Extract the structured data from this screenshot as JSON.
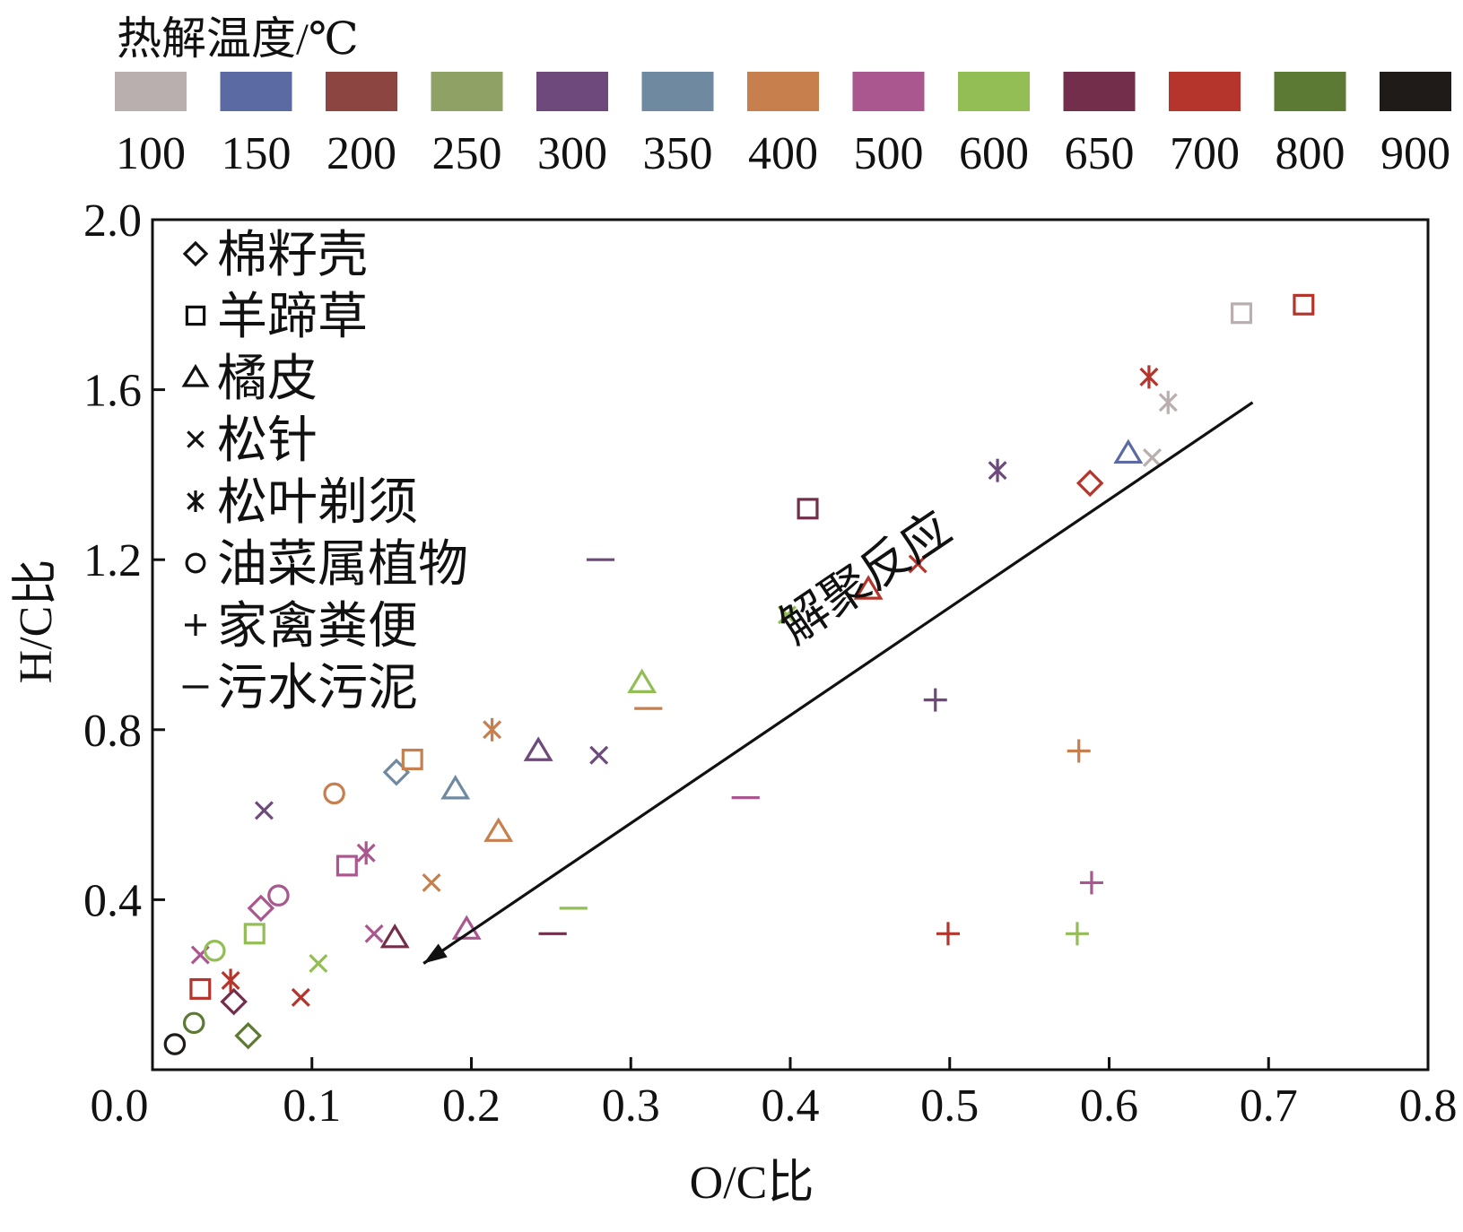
{
  "chart_data": {
    "type": "scatter",
    "xlabel": "O/C比",
    "ylabel": "H/C比",
    "xlim": [
      0.0,
      0.8
    ],
    "ylim": [
      0.0,
      2.0
    ],
    "xticks": [
      "0.0",
      "0.1",
      "0.2",
      "0.3",
      "0.4",
      "0.5",
      "0.6",
      "0.7",
      "0.8"
    ],
    "yticks": [
      "0.4",
      "0.8",
      "1.2",
      "1.6",
      "2.0"
    ],
    "grid": false,
    "color_legend": {
      "title": "热解温度/℃",
      "items": [
        {
          "label": "100",
          "color": "#b8afae"
        },
        {
          "label": "150",
          "color": "#5c6aa3"
        },
        {
          "label": "200",
          "color": "#8c4540"
        },
        {
          "label": "250",
          "color": "#8fa165"
        },
        {
          "label": "300",
          "color": "#6d4a7b"
        },
        {
          "label": "350",
          "color": "#6f8aa0"
        },
        {
          "label": "400",
          "color": "#c67f4d"
        },
        {
          "label": "500",
          "color": "#a9578e"
        },
        {
          "label": "600",
          "color": "#93bd55"
        },
        {
          "label": "650",
          "color": "#722e4b"
        },
        {
          "label": "700",
          "color": "#b5342b"
        },
        {
          "label": "800",
          "color": "#5c7a33"
        },
        {
          "label": "900",
          "color": "#1e1b19"
        }
      ]
    },
    "marker_legend": {
      "placement": "top-left",
      "items": [
        {
          "label": "棉籽壳",
          "marker": "diamond"
        },
        {
          "label": "羊蹄草",
          "marker": "square"
        },
        {
          "label": "橘皮",
          "marker": "triangle"
        },
        {
          "label": "松针",
          "marker": "x"
        },
        {
          "label": "松叶剃须",
          "marker": "star"
        },
        {
          "label": "油菜属植物",
          "marker": "circle"
        },
        {
          "label": "家禽粪便",
          "marker": "plus"
        },
        {
          "label": "污水污泥",
          "marker": "minus"
        }
      ]
    },
    "annotation": {
      "text": "解聚反应",
      "from": [
        0.69,
        1.57
      ],
      "to": [
        0.17,
        0.25
      ]
    },
    "series": [
      {
        "name": "棉籽壳",
        "marker": "diamond",
        "points": [
          {
            "x": 0.153,
            "y": 0.7,
            "t": "350"
          },
          {
            "x": 0.068,
            "y": 0.38,
            "t": "500"
          },
          {
            "x": 0.051,
            "y": 0.16,
            "t": "650"
          },
          {
            "x": 0.06,
            "y": 0.08,
            "t": "800"
          },
          {
            "x": 0.588,
            "y": 1.38,
            "t": "700"
          }
        ]
      },
      {
        "name": "羊蹄草",
        "marker": "square",
        "points": [
          {
            "x": 0.683,
            "y": 1.78,
            "t": "100"
          },
          {
            "x": 0.722,
            "y": 1.8,
            "t": "700"
          },
          {
            "x": 0.411,
            "y": 1.32,
            "t": "650"
          },
          {
            "x": 0.163,
            "y": 0.73,
            "t": "400"
          },
          {
            "x": 0.122,
            "y": 0.48,
            "t": "500"
          },
          {
            "x": 0.064,
            "y": 0.32,
            "t": "600"
          },
          {
            "x": 0.03,
            "y": 0.19,
            "t": "700"
          }
        ]
      },
      {
        "name": "橘皮",
        "marker": "triangle",
        "points": [
          {
            "x": 0.612,
            "y": 1.45,
            "t": "150"
          },
          {
            "x": 0.449,
            "y": 1.13,
            "t": "700"
          },
          {
            "x": 0.307,
            "y": 0.91,
            "t": "600"
          },
          {
            "x": 0.242,
            "y": 0.75,
            "t": "300"
          },
          {
            "x": 0.19,
            "y": 0.66,
            "t": "350"
          },
          {
            "x": 0.217,
            "y": 0.56,
            "t": "400"
          },
          {
            "x": 0.197,
            "y": 0.33,
            "t": "500"
          },
          {
            "x": 0.152,
            "y": 0.31,
            "t": "650"
          }
        ]
      },
      {
        "name": "松针",
        "marker": "x",
        "points": [
          {
            "x": 0.627,
            "y": 1.44,
            "t": "100"
          },
          {
            "x": 0.48,
            "y": 1.19,
            "t": "700"
          },
          {
            "x": 0.398,
            "y": 1.07,
            "t": "600"
          },
          {
            "x": 0.28,
            "y": 0.74,
            "t": "300"
          },
          {
            "x": 0.07,
            "y": 0.61,
            "t": "300"
          },
          {
            "x": 0.175,
            "y": 0.44,
            "t": "400"
          },
          {
            "x": 0.139,
            "y": 0.32,
            "t": "500"
          },
          {
            "x": 0.104,
            "y": 0.25,
            "t": "600"
          },
          {
            "x": 0.093,
            "y": 0.17,
            "t": "700"
          },
          {
            "x": 0.03,
            "y": 0.27,
            "t": "500"
          }
        ]
      },
      {
        "name": "松叶剃须",
        "marker": "star",
        "points": [
          {
            "x": 0.625,
            "y": 1.63,
            "t": "700"
          },
          {
            "x": 0.637,
            "y": 1.57,
            "t": "100"
          },
          {
            "x": 0.53,
            "y": 1.41,
            "t": "300"
          },
          {
            "x": 0.213,
            "y": 0.8,
            "t": "400"
          },
          {
            "x": 0.134,
            "y": 0.51,
            "t": "500"
          },
          {
            "x": 0.049,
            "y": 0.21,
            "t": "700"
          }
        ]
      },
      {
        "name": "油菜属植物",
        "marker": "circle",
        "points": [
          {
            "x": 0.114,
            "y": 0.65,
            "t": "400"
          },
          {
            "x": 0.079,
            "y": 0.41,
            "t": "500"
          },
          {
            "x": 0.039,
            "y": 0.28,
            "t": "600"
          },
          {
            "x": 0.026,
            "y": 0.11,
            "t": "800"
          },
          {
            "x": 0.014,
            "y": 0.06,
            "t": "900"
          }
        ]
      },
      {
        "name": "家禽粪便",
        "marker": "plus",
        "points": [
          {
            "x": 0.491,
            "y": 0.87,
            "t": "300"
          },
          {
            "x": 0.581,
            "y": 0.75,
            "t": "400"
          },
          {
            "x": 0.589,
            "y": 0.44,
            "t": "500"
          },
          {
            "x": 0.499,
            "y": 0.32,
            "t": "700"
          },
          {
            "x": 0.58,
            "y": 0.32,
            "t": "600"
          }
        ]
      },
      {
        "name": "污水污泥",
        "marker": "minus",
        "points": [
          {
            "x": 0.281,
            "y": 1.2,
            "t": "300"
          },
          {
            "x": 0.311,
            "y": 0.85,
            "t": "400"
          },
          {
            "x": 0.372,
            "y": 0.64,
            "t": "500"
          },
          {
            "x": 0.264,
            "y": 0.38,
            "t": "600"
          },
          {
            "x": 0.251,
            "y": 0.32,
            "t": "650"
          }
        ]
      }
    ]
  }
}
